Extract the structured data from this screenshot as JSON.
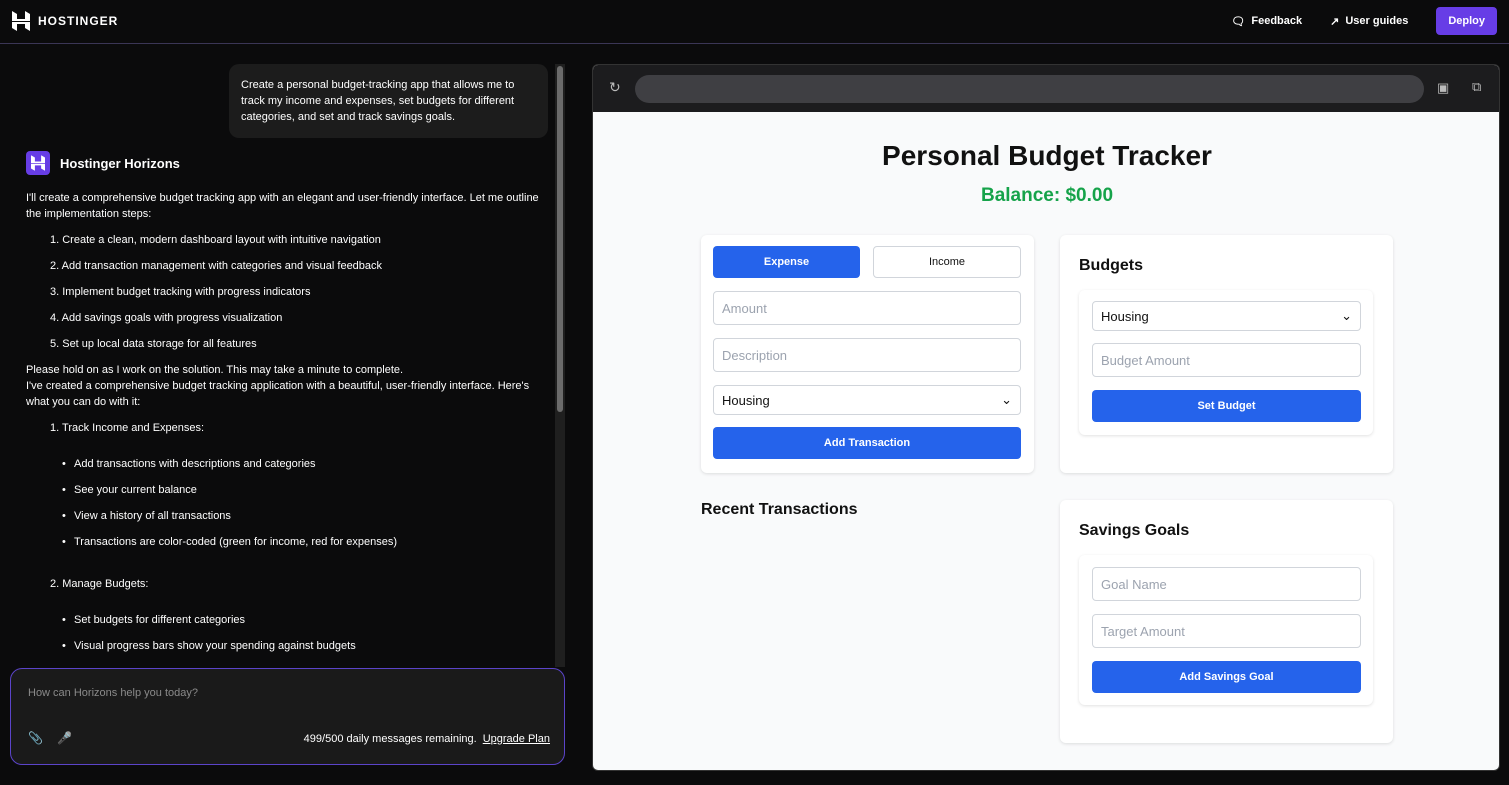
{
  "topbar": {
    "brand": "HOSTINGER",
    "feedback": "Feedback",
    "user_guides": "User guides",
    "deploy": "Deploy"
  },
  "chat": {
    "user_message": "Create a personal budget-tracking app that allows me to track my income and expenses, set budgets for different categories, and set and track savings goals.",
    "agent_name": "Hostinger Horizons",
    "intro": "I'll create a comprehensive budget tracking app with an elegant and user-friendly interface. Let me outline the implementation steps:",
    "steps": [
      "1. Create a clean, modern dashboard layout with intuitive navigation",
      "2. Add transaction management with categories and visual feedback",
      "3. Implement budget tracking with progress indicators",
      "4. Add savings goals with progress visualization",
      "5. Set up local data storage for all features"
    ],
    "hold_on": "Please hold on as I work on the solution. This may take a minute to complete.",
    "created": "I've created a comprehensive budget tracking application with a beautiful, user-friendly interface. Here's what you can do with it:",
    "section1": "1. Track Income and Expenses:",
    "section1_items": [
      "Add transactions with descriptions and categories",
      "See your current balance",
      "View a history of all transactions",
      "Transactions are color-coded (green for income, red for expenses)"
    ],
    "section2": "2. Manage Budgets:",
    "section2_items": [
      "Set budgets for different categories",
      "Visual progress bars show your spending against budgets"
    ]
  },
  "input": {
    "placeholder": "How can Horizons help you today?",
    "remaining": "499/500 daily messages remaining.",
    "upgrade": "Upgrade Plan"
  },
  "app": {
    "title": "Personal Budget Tracker",
    "balance": "Balance: $0.00",
    "tab_expense": "Expense",
    "tab_income": "Income",
    "amount_ph": "Amount",
    "description_ph": "Description",
    "category": "Housing",
    "add_transaction": "Add Transaction",
    "recent": "Recent Transactions",
    "budgets": "Budgets",
    "budget_category": "Housing",
    "budget_amount_ph": "Budget Amount",
    "set_budget": "Set Budget",
    "savings": "Savings Goals",
    "goal_name_ph": "Goal Name",
    "target_ph": "Target Amount",
    "add_goal": "Add Savings Goal"
  },
  "colors": {
    "accent": "#673de6",
    "primary": "#2563eb",
    "balance": "#16a34a"
  }
}
